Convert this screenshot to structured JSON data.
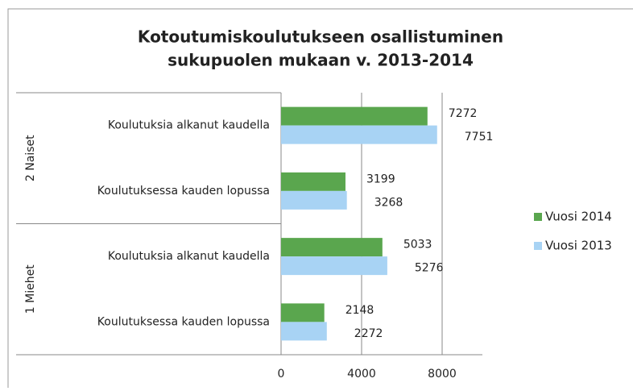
{
  "chart_data": {
    "type": "bar",
    "orientation": "horizontal",
    "title": [
      "Kotoutumiskoulutukseen osallistuminen",
      "sukupuolen mukaan v. 2013-2014"
    ],
    "groups": [
      {
        "name": "2 Naiset",
        "categories": [
          "Koulutuksia alkanut kaudella",
          "Koulutuksessa kauden lopussa"
        ]
      },
      {
        "name": "1 Miehet",
        "categories": [
          "Koulutuksia alkanut kaudella",
          "Koulutuksessa kauden lopussa"
        ]
      }
    ],
    "series": [
      {
        "name": "Vuosi 2014",
        "color": "#5aa64e",
        "values": [
          7272,
          3199,
          5033,
          2148
        ]
      },
      {
        "name": "Vuosi 2013",
        "color": "#a8d3f4",
        "values": [
          7751,
          3268,
          5276,
          2272
        ]
      }
    ],
    "xlim": [
      0,
      10000
    ],
    "xticks": [
      0,
      4000,
      8000
    ],
    "grid": true,
    "legend": "right"
  }
}
